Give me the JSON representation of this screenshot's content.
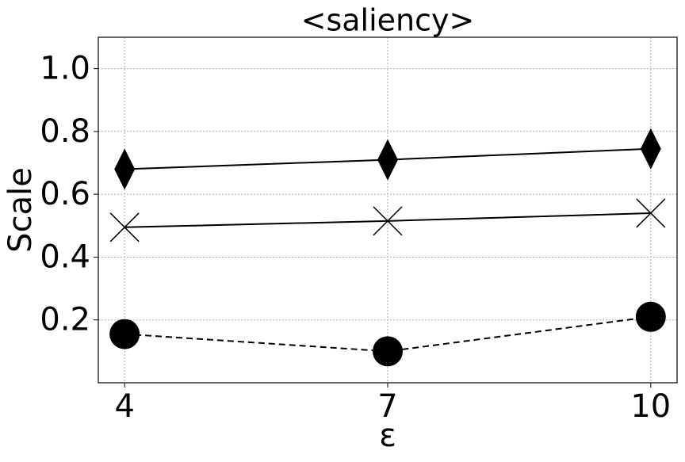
{
  "chart_data": {
    "type": "line",
    "title": "<saliency>",
    "xlabel": "ε",
    "ylabel": "Scale",
    "x": [
      4,
      7,
      10
    ],
    "series": [
      {
        "color": "#000000",
        "marker": "diamond",
        "linestyle": "solid",
        "values": [
          0.68,
          0.71,
          0.745
        ]
      },
      {
        "color": "#000000",
        "marker": "x",
        "linestyle": "solid",
        "values": [
          0.495,
          0.515,
          0.54
        ]
      },
      {
        "color": "#000000",
        "marker": "circle",
        "linestyle": "dashed",
        "values": [
          0.155,
          0.1,
          0.21
        ]
      }
    ],
    "xlim": [
      3.7,
      10.3
    ],
    "ylim": [
      0,
      1.1
    ],
    "xticks": [
      4,
      7,
      10
    ],
    "yticks": [
      0.2,
      0.4,
      0.6,
      0.8,
      {
        "value": 1,
        "label": "1.0"
      }
    ],
    "grid": true
  }
}
